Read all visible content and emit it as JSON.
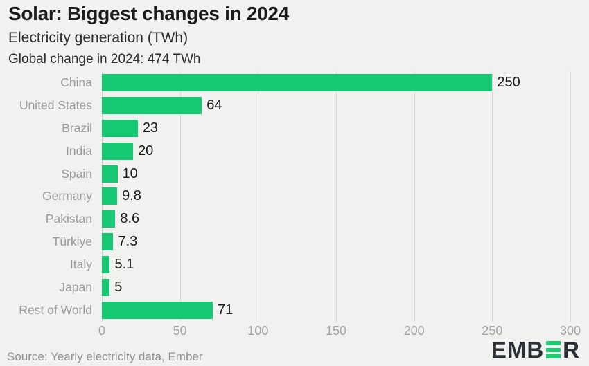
{
  "header": {
    "title": "Solar: Biggest changes in 2024",
    "subtitle": "Electricity generation (TWh)",
    "note": "Global change in 2024: 474 TWh"
  },
  "chart_data": {
    "type": "bar",
    "orientation": "horizontal",
    "title": "Solar: Biggest changes in 2024",
    "subtitle": "Electricity generation (TWh)",
    "annotation": "Global change in 2024: 474 TWh",
    "categories": [
      "China",
      "United States",
      "Brazil",
      "India",
      "Spain",
      "Germany",
      "Pakistan",
      "Türkiye",
      "Italy",
      "Japan",
      "Rest of World"
    ],
    "values": [
      250,
      64,
      23,
      20,
      10,
      9.8,
      8.6,
      7.3,
      5.1,
      5,
      71
    ],
    "value_labels": [
      "250",
      "64",
      "23",
      "20",
      "10",
      "9.8",
      "8.6",
      "7.3",
      "5.1",
      "5",
      "71"
    ],
    "xlabel": "",
    "ylabel": "",
    "xlim": [
      0,
      300
    ],
    "xticks": [
      0,
      50,
      100,
      150,
      200,
      250,
      300
    ],
    "xtick_labels": [
      "0",
      "50",
      "100",
      "150",
      "200",
      "250",
      "300"
    ],
    "grid": true,
    "legend": false,
    "bar_color": "#17c873"
  },
  "footer": {
    "source": "Source: Yearly electricity data, Ember",
    "logo": {
      "prefix": "EMB",
      "suffix": "R",
      "icon": "ember-logo-e-icon",
      "accent_color": "#1fc873",
      "text_color": "#2b3036"
    }
  },
  "colors": {
    "background": "#f1f1ef",
    "bar": "#17c873",
    "gridline": "#d7d7d5",
    "category_label": "#9a9a98",
    "value_label": "#1b1b1b",
    "tick_label": "#a2a2a0",
    "title": "#1c1c1c",
    "source": "#91918f"
  }
}
